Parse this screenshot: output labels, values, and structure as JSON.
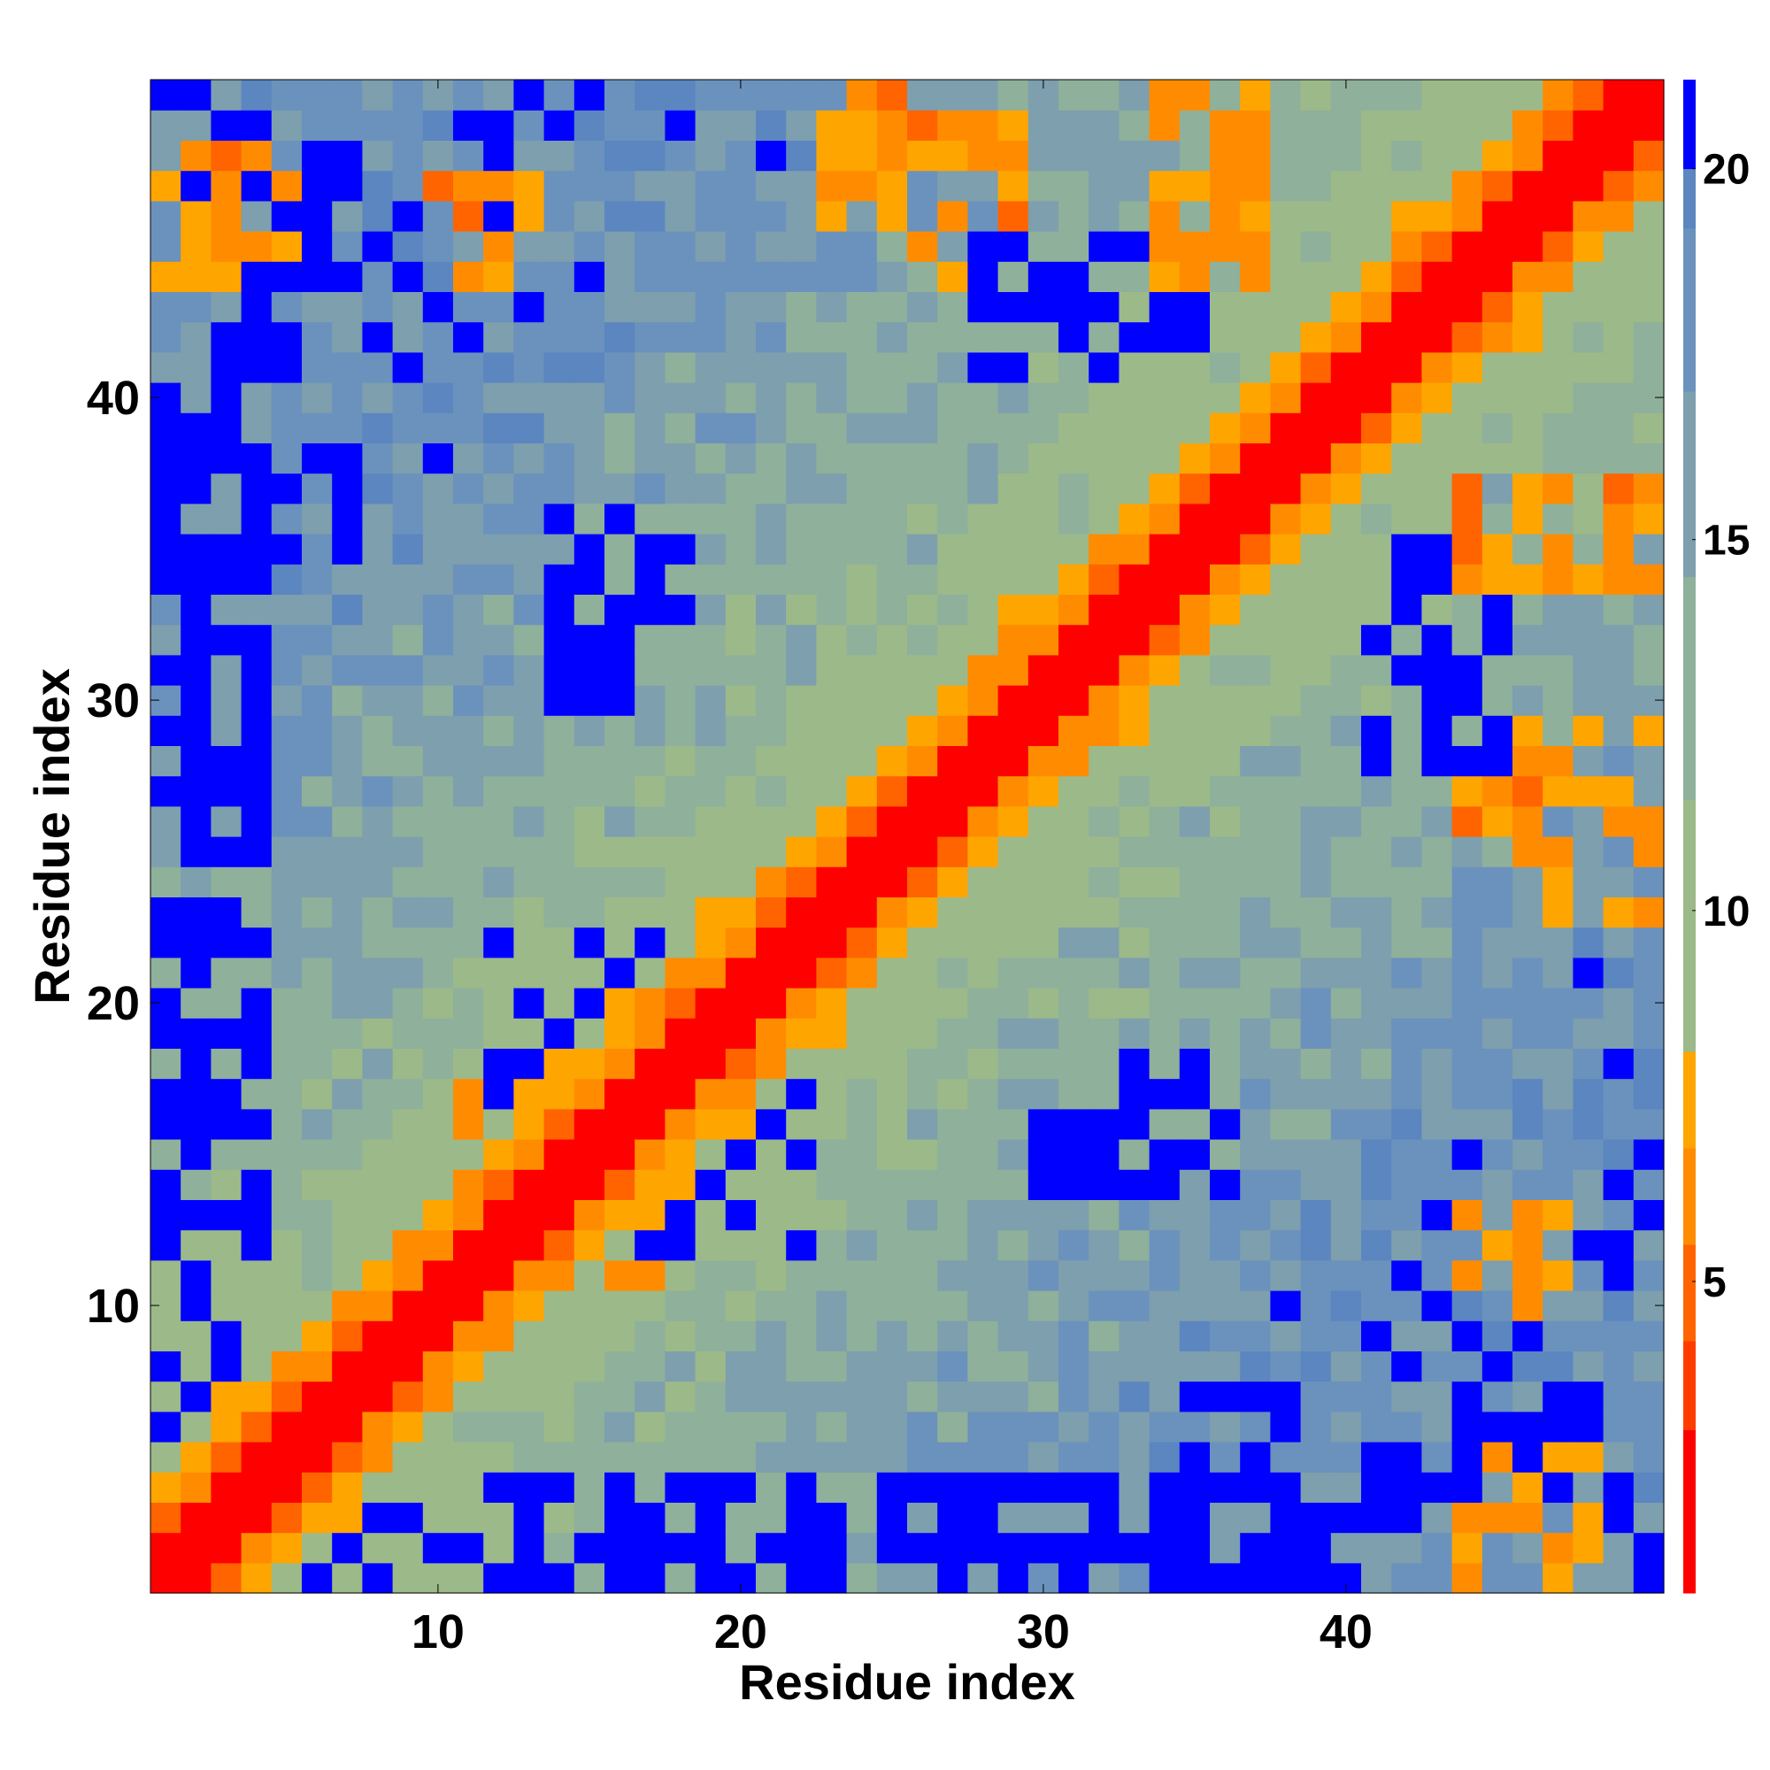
{
  "chart_data": {
    "type": "heatmap",
    "title": "",
    "xlabel": "Residue index",
    "ylabel": "Residue index",
    "n": 50,
    "xlim": [
      1,
      50
    ],
    "ylim": [
      1,
      50
    ],
    "x_ticks": [
      10,
      20,
      30,
      40
    ],
    "y_ticks": [
      10,
      20,
      30,
      40
    ],
    "colorbar": {
      "ticks": [
        5,
        10,
        15,
        20
      ],
      "range": [
        0.8,
        21.2
      ],
      "bands": [
        {
          "from": 0.8,
          "to": 3.0,
          "color": "#ff0000"
        },
        {
          "from": 3.0,
          "to": 4.2,
          "color": "#ff3c00"
        },
        {
          "from": 4.2,
          "to": 5.5,
          "color": "#ff6400"
        },
        {
          "from": 5.5,
          "to": 6.8,
          "color": "#ff8c00"
        },
        {
          "from": 6.8,
          "to": 8.1,
          "color": "#ffa500"
        },
        {
          "from": 8.1,
          "to": 11.5,
          "color": "#9cb98a"
        },
        {
          "from": 11.5,
          "to": 14.5,
          "color": "#8fb09a"
        },
        {
          "from": 14.5,
          "to": 17.0,
          "color": "#7d9fae"
        },
        {
          "from": 17.0,
          "to": 19.2,
          "color": "#6b92bc"
        },
        {
          "from": 19.2,
          "to": 20.0,
          "color": "#5b86c0"
        },
        {
          "from": 20.0,
          "to": 21.2,
          "color": "#0000ff"
        }
      ]
    },
    "matrix_rule": "symmetric contact/distance map; value = distance between residues i and j in Angstrom-like units (diagonal ~1.9, secondary band 3-8, background 10-19, saturated 20+)",
    "diagonal_value": 1.9,
    "near_diagonal_values": [
      1.9,
      3.8,
      5.5,
      7.0,
      8.5
    ],
    "far_patches": [
      {
        "i": [
          1,
          4
        ],
        "j": [
          10,
          40
        ],
        "value": 20.5
      },
      {
        "i": [
          1,
          16
        ],
        "j": [
          1,
          3
        ],
        "value": 20.5
      },
      {
        "i": [
          12,
          20
        ],
        "j": [
          13,
          22
        ],
        "value": 20.5
      },
      {
        "i": [
          28,
          33
        ],
        "j": [
          41,
          45
        ],
        "value": 20.5
      },
      {
        "i": [
          33,
          36
        ],
        "j": [
          14,
          18
        ],
        "value": 20.5
      },
      {
        "i": [
          44,
          47
        ],
        "j": [
          4,
          6
        ],
        "value": 20.5
      },
      {
        "i": [
          42,
          43
        ],
        "j": [
          32,
          35
        ],
        "value": 20.5
      },
      {
        "i": [
          3,
          5
        ],
        "j": [
          40,
          43
        ],
        "value": 20.5
      },
      {
        "i": [
          1,
          2
        ],
        "j": [
          48,
          50
        ],
        "value": 20.5
      },
      {
        "i": [
          49,
          50
        ],
        "j": [
          1,
          3
        ],
        "value": 20.5
      },
      {
        "i": [
          14,
          16
        ],
        "j": [
          30,
          35
        ],
        "value": 20.5
      }
    ],
    "secondary_contacts": [
      {
        "i": [
          26,
          29
        ],
        "j": [
          44,
          50
        ],
        "value": 6.5
      },
      {
        "i": [
          34,
          37
        ],
        "j": [
          44,
          50
        ],
        "value": 6.5
      },
      {
        "i": [
          46,
          50
        ],
        "j": [
          23,
          29
        ],
        "value": 6.5
      },
      {
        "i": [
          46,
          50
        ],
        "j": [
          34,
          37
        ],
        "value": 6.5
      },
      {
        "i": [
          10,
          13
        ],
        "j": [
          44,
          47
        ],
        "value": 6.5
      },
      {
        "i": [
          1,
          5
        ],
        "j": [
          44,
          48
        ],
        "value": 6.5
      },
      {
        "i": [
          12,
          18
        ],
        "j": [
          11,
          18
        ],
        "value": 6.0
      }
    ]
  }
}
